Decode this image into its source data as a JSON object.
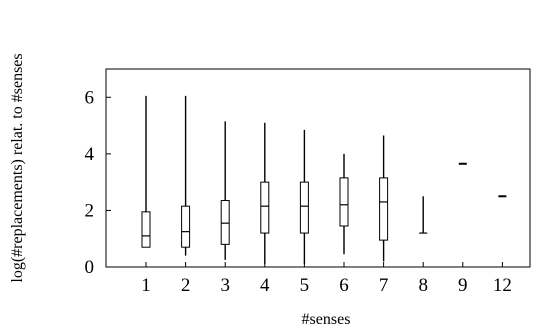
{
  "chart_data": {
    "type": "boxplot",
    "xlabel": "#senses",
    "ylabel": "log(#replacements) relat. to #senses",
    "ylim": [
      0,
      7
    ],
    "yticks": [
      0,
      2,
      4,
      6
    ],
    "categories": [
      "1",
      "2",
      "3",
      "4",
      "5",
      "6",
      "7",
      "8",
      "9",
      "12"
    ],
    "boxes": [
      {
        "category": "1",
        "whisker_low": 0.7,
        "q1": 0.7,
        "median": 1.1,
        "q3": 1.95,
        "whisker_high": 6.05
      },
      {
        "category": "2",
        "whisker_low": 0.4,
        "q1": 0.7,
        "median": 1.25,
        "q3": 2.15,
        "whisker_high": 6.05
      },
      {
        "category": "3",
        "whisker_low": 0.25,
        "q1": 0.8,
        "median": 1.55,
        "q3": 2.35,
        "whisker_high": 5.15
      },
      {
        "category": "4",
        "whisker_low": 0.1,
        "q1": 1.2,
        "median": 2.15,
        "q3": 3.0,
        "whisker_high": 5.1
      },
      {
        "category": "5",
        "whisker_low": 0.1,
        "q1": 1.2,
        "median": 2.15,
        "q3": 3.0,
        "whisker_high": 4.85
      },
      {
        "category": "6",
        "whisker_low": 0.45,
        "q1": 1.45,
        "median": 2.2,
        "q3": 3.15,
        "whisker_high": 4.0
      },
      {
        "category": "7",
        "whisker_low": 0.2,
        "q1": 0.95,
        "median": 2.3,
        "q3": 3.15,
        "whisker_high": 4.65
      },
      {
        "category": "8",
        "whisker_low": 1.2,
        "q1": 1.2,
        "median": 1.2,
        "q3": 1.2,
        "whisker_high": 2.5
      },
      {
        "category": "9",
        "whisker_low": 3.65,
        "q1": 3.65,
        "median": 3.65,
        "q3": 3.65,
        "whisker_high": 3.65
      },
      {
        "category": "12",
        "whisker_low": 2.5,
        "q1": 2.5,
        "median": 2.5,
        "q3": 2.5,
        "whisker_high": 2.5
      }
    ],
    "grid": false,
    "legend": "none"
  }
}
